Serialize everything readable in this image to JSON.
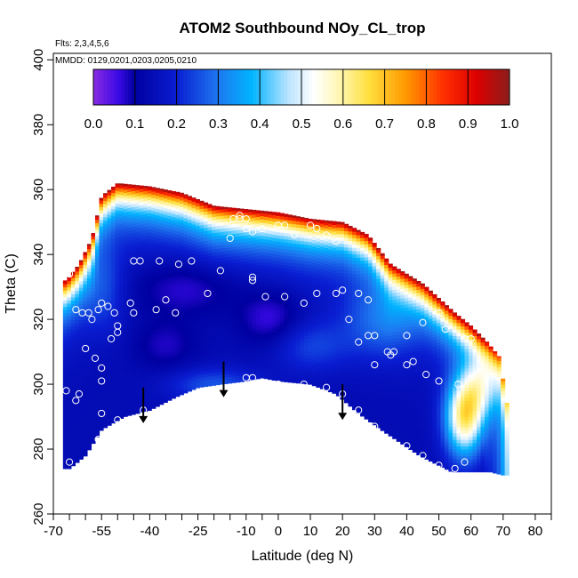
{
  "chart_data": {
    "type": "heatmap",
    "title": "ATOM2 Southbound NOy_CL_trop",
    "flights_note": "Flts: 2,3,4,5,6",
    "dates_note": "MMDD: 0129,0201,0203,0205,0210",
    "xlabel": "Latitude (deg N)",
    "ylabel": "Theta (C)",
    "xlim": [
      -70,
      85
    ],
    "ylim": [
      260,
      402
    ],
    "x_major_ticks": [
      -70,
      -55,
      -40,
      -25,
      -10,
      0,
      10,
      20,
      30,
      40,
      50,
      60,
      70,
      80
    ],
    "x_major_labels": [
      "-70",
      "-55",
      "-40",
      "-25",
      "-10",
      "0",
      "10",
      "20",
      "30",
      "40",
      "50",
      "60",
      "70",
      "80"
    ],
    "x_minor_ticks": [
      -65,
      -60,
      -50,
      -45,
      -35,
      -30,
      -20,
      -15,
      -5
    ],
    "y_ticks": [
      260,
      280,
      300,
      320,
      340,
      360,
      380,
      400
    ],
    "y_tick_labels": [
      "260",
      "280",
      "300",
      "320",
      "340",
      "360",
      "380",
      "400"
    ],
    "colorbar": {
      "min": 0.0,
      "max": 1.0,
      "ticks": [
        "0.0",
        "0.1",
        "0.2",
        "0.3",
        "0.4",
        "0.5",
        "0.6",
        "0.7",
        "0.8",
        "0.9",
        "1.0"
      ],
      "stops": [
        {
          "v": 0.0,
          "c": "#8a2be2"
        },
        {
          "v": 0.06,
          "c": "#3a0ae6"
        },
        {
          "v": 0.1,
          "c": "#0000a0"
        },
        {
          "v": 0.2,
          "c": "#0a1ed2"
        },
        {
          "v": 0.3,
          "c": "#1e78f0"
        },
        {
          "v": 0.38,
          "c": "#00b4ff"
        },
        {
          "v": 0.47,
          "c": "#bde4ff"
        },
        {
          "v": 0.53,
          "c": "#ffffff"
        },
        {
          "v": 0.6,
          "c": "#fff4a6"
        },
        {
          "v": 0.66,
          "c": "#ffe040"
        },
        {
          "v": 0.75,
          "c": "#ff9a00"
        },
        {
          "v": 0.84,
          "c": "#ff3000"
        },
        {
          "v": 0.92,
          "c": "#dd0000"
        },
        {
          "v": 1.0,
          "c": "#8c1c1c"
        }
      ]
    },
    "region": {
      "lower_boundary": [
        [
          -65,
          274
        ],
        [
          -60,
          278
        ],
        [
          -55,
          286
        ],
        [
          -48,
          290
        ],
        [
          -40,
          292
        ],
        [
          -32,
          296
        ],
        [
          -25,
          299
        ],
        [
          -18,
          300
        ],
        [
          -10,
          301
        ],
        [
          -5,
          302
        ],
        [
          0,
          301
        ],
        [
          10,
          300
        ],
        [
          18,
          297
        ],
        [
          25,
          291
        ],
        [
          32,
          286
        ],
        [
          38,
          282
        ],
        [
          44,
          278
        ],
        [
          50,
          275
        ],
        [
          54,
          273
        ],
        [
          60,
          273
        ],
        [
          66,
          273
        ],
        [
          70,
          272
        ]
      ],
      "upper_boundary": [
        [
          -66,
          332
        ],
        [
          -62,
          337
        ],
        [
          -58,
          345
        ],
        [
          -55,
          358
        ],
        [
          -50,
          362
        ],
        [
          -40,
          361
        ],
        [
          -30,
          359
        ],
        [
          -20,
          355
        ],
        [
          -10,
          354
        ],
        [
          0,
          353
        ],
        [
          10,
          351
        ],
        [
          20,
          350
        ],
        [
          28,
          346
        ],
        [
          35,
          337
        ],
        [
          45,
          331
        ],
        [
          55,
          322
        ],
        [
          60,
          318
        ],
        [
          65,
          313
        ],
        [
          70,
          307
        ],
        [
          71,
          297
        ],
        [
          71,
          285
        ],
        [
          70,
          273
        ]
      ]
    },
    "base_value": 0.14,
    "features": [
      {
        "x": -28,
        "y": 330,
        "sx": 18,
        "sy": 9,
        "v": 0.06
      },
      {
        "x": -2,
        "y": 320,
        "sx": 10,
        "sy": 9,
        "v": 0.05
      },
      {
        "x": 32,
        "y": 320,
        "sx": 12,
        "sy": 12,
        "v": 0.28
      },
      {
        "x": 10,
        "y": 312,
        "sx": 12,
        "sy": 8,
        "v": 0.24
      },
      {
        "x": -35,
        "y": 312,
        "sx": 10,
        "sy": 8,
        "v": 0.08
      },
      {
        "x": -55,
        "y": 330,
        "sx": 7,
        "sy": 14,
        "v": 0.26
      },
      {
        "x": -20,
        "y": 300,
        "sx": 14,
        "sy": 5,
        "v": 0.26
      },
      {
        "x": 58,
        "y": 290,
        "sx": 6,
        "sy": 12,
        "v": 0.62
      },
      {
        "x": 63,
        "y": 300,
        "sx": 6,
        "sy": 10,
        "v": 0.4
      }
    ],
    "obs_points": [
      [
        -65,
        334
      ],
      [
        -63,
        323
      ],
      [
        -61,
        322
      ],
      [
        -59,
        322
      ],
      [
        -58,
        320
      ],
      [
        -56,
        323
      ],
      [
        -55,
        325
      ],
      [
        -53,
        324
      ],
      [
        -51,
        322
      ],
      [
        -50,
        316
      ],
      [
        -50,
        318
      ],
      [
        -52,
        314
      ],
      [
        -55,
        305
      ],
      [
        -55,
        301
      ],
      [
        -57,
        308
      ],
      [
        -62,
        297
      ],
      [
        -63,
        295
      ],
      [
        -55,
        291
      ],
      [
        -50,
        289
      ],
      [
        -42,
        292
      ],
      [
        -35,
        292
      ],
      [
        -28,
        296
      ],
      [
        -20,
        298
      ],
      [
        -10,
        302
      ],
      [
        -8,
        302
      ],
      [
        0,
        300
      ],
      [
        8,
        300
      ],
      [
        15,
        299
      ],
      [
        20,
        297
      ],
      [
        25,
        292
      ],
      [
        30,
        287
      ],
      [
        40,
        281
      ],
      [
        45,
        278
      ],
      [
        50,
        275
      ],
      [
        55,
        274
      ],
      [
        58,
        276
      ],
      [
        -56,
        283
      ],
      [
        -57,
        280
      ],
      [
        -60,
        276
      ],
      [
        -65,
        276
      ],
      [
        -45,
        338
      ],
      [
        -43,
        338
      ],
      [
        -37,
        338
      ],
      [
        -31,
        337
      ],
      [
        -27,
        338
      ],
      [
        -35,
        326
      ],
      [
        -38,
        323
      ],
      [
        -45,
        322
      ],
      [
        -46,
        325
      ],
      [
        -32,
        322
      ],
      [
        -22,
        328
      ],
      [
        -18,
        335
      ],
      [
        -15,
        345
      ],
      [
        -10,
        348
      ],
      [
        -8,
        347
      ],
      [
        -12,
        351
      ],
      [
        -14,
        351
      ],
      [
        -12,
        352
      ],
      [
        -10,
        351
      ],
      [
        -5,
        348
      ],
      [
        0,
        349
      ],
      [
        2,
        349
      ],
      [
        5,
        346
      ],
      [
        10,
        349
      ],
      [
        12,
        348
      ],
      [
        15,
        346
      ],
      [
        18,
        344
      ],
      [
        -8,
        333
      ],
      [
        -8,
        332
      ],
      [
        -4,
        327
      ],
      [
        2,
        327
      ],
      [
        8,
        325
      ],
      [
        12,
        328
      ],
      [
        18,
        328
      ],
      [
        20,
        329
      ],
      [
        25,
        328
      ],
      [
        28,
        326
      ],
      [
        22,
        320
      ],
      [
        25,
        313
      ],
      [
        28,
        315
      ],
      [
        30,
        315
      ],
      [
        34,
        310
      ],
      [
        36,
        310
      ],
      [
        40,
        315
      ],
      [
        45,
        319
      ],
      [
        50,
        322
      ],
      [
        52,
        317
      ],
      [
        58,
        314
      ],
      [
        60,
        314
      ],
      [
        60,
        302
      ],
      [
        56,
        300
      ],
      [
        50,
        301
      ],
      [
        46,
        303
      ],
      [
        42,
        307
      ],
      [
        40,
        306
      ],
      [
        35,
        309
      ],
      [
        30,
        306
      ],
      [
        -60,
        311
      ],
      [
        -66,
        298
      ]
    ],
    "arrows_lat": [
      -42,
      -17,
      20
    ],
    "arrows_theta": [
      288,
      296,
      289
    ]
  }
}
